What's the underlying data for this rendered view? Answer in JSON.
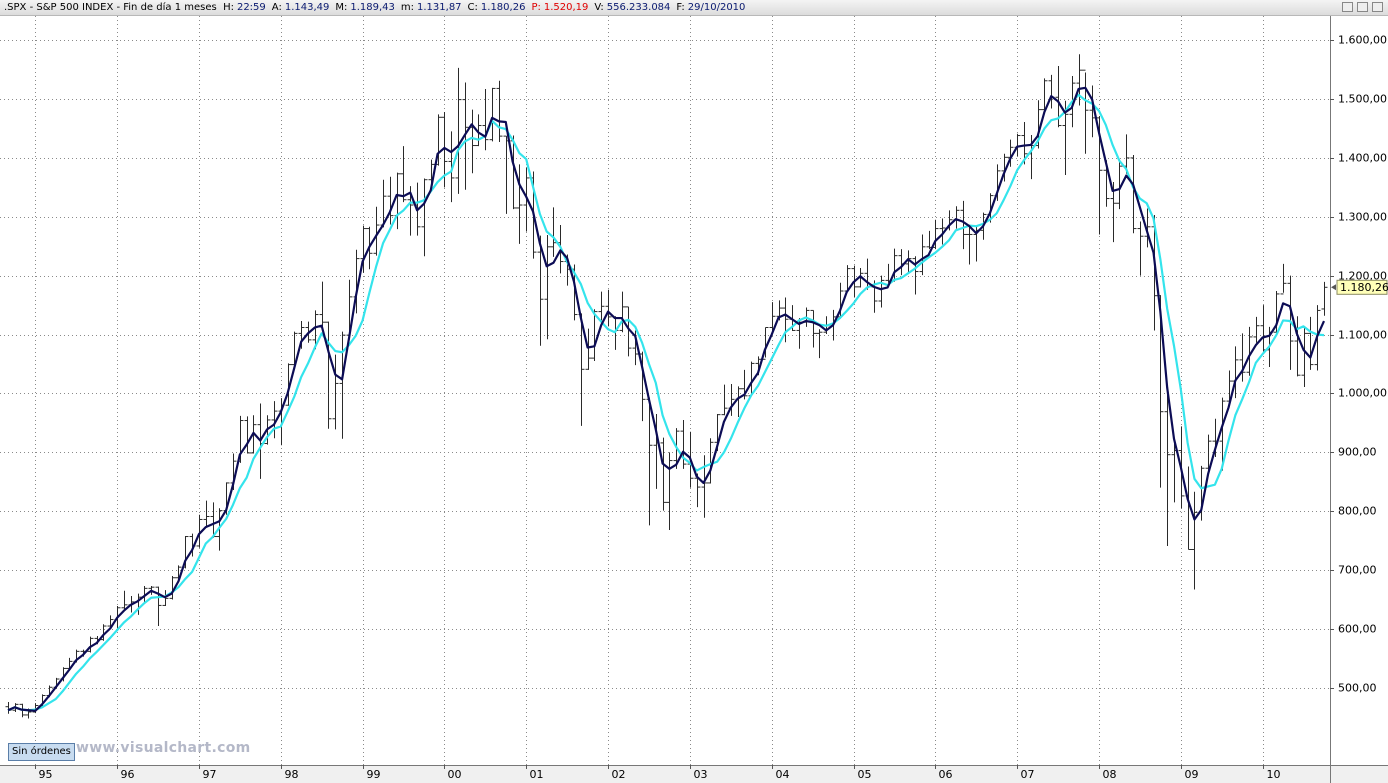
{
  "header": {
    "title": ".SPX - S&P 500 INDEX - Fin de día 1 meses",
    "items": [
      {
        "label": "H:",
        "value": "22:59"
      },
      {
        "label": "A:",
        "value": "1.143,49"
      },
      {
        "label": "M:",
        "value": "1.189,43"
      },
      {
        "label": "m:",
        "value": "1.131,87"
      },
      {
        "label": "C:",
        "value": "1.180,26"
      },
      {
        "label": "P:",
        "value": "1.520,19",
        "color": "#e00000"
      },
      {
        "label": "V:",
        "value": "556.233.084"
      },
      {
        "label": "F:",
        "value": "29/10/2010"
      }
    ]
  },
  "order_button": "Sin órdenes",
  "watermark": "www.visualchart.com",
  "chart_data": {
    "type": "ohlc",
    "color": "#2a2a2a",
    "grid": true,
    "categories": [
      null,
      null,
      null,
      null,
      "95",
      null,
      null,
      null,
      null,
      null,
      null,
      null,
      null,
      null,
      null,
      null,
      "96",
      null,
      null,
      null,
      null,
      null,
      null,
      null,
      null,
      null,
      null,
      null,
      "97",
      null,
      null,
      null,
      null,
      null,
      null,
      null,
      null,
      null,
      null,
      null,
      "98",
      null,
      null,
      null,
      null,
      null,
      null,
      null,
      null,
      null,
      null,
      null,
      "99",
      null,
      null,
      null,
      null,
      null,
      null,
      null,
      null,
      null,
      null,
      null,
      "00",
      null,
      null,
      null,
      null,
      null,
      null,
      null,
      null,
      null,
      null,
      null,
      "01",
      null,
      null,
      null,
      null,
      null,
      null,
      null,
      null,
      null,
      null,
      null,
      "02",
      null,
      null,
      null,
      null,
      null,
      null,
      null,
      null,
      null,
      null,
      null,
      "03",
      null,
      null,
      null,
      null,
      null,
      null,
      null,
      null,
      null,
      null,
      null,
      "04",
      null,
      null,
      null,
      null,
      null,
      null,
      null,
      null,
      null,
      null,
      null,
      "05",
      null,
      null,
      null,
      null,
      null,
      null,
      null,
      null,
      null,
      null,
      null,
      "06",
      null,
      null,
      null,
      null,
      null,
      null,
      null,
      null,
      null,
      null,
      null,
      "07",
      null,
      null,
      null,
      null,
      null,
      null,
      null,
      null,
      null,
      null,
      null,
      "08",
      null,
      null,
      null,
      null,
      null,
      null,
      null,
      null,
      null,
      null,
      null,
      "09",
      null,
      null,
      null,
      null,
      null,
      null,
      null,
      null,
      null,
      null,
      null,
      "10",
      null,
      null,
      null,
      null,
      null,
      null,
      null,
      null,
      null
    ],
    "open": [
      468,
      462,
      472,
      454,
      459,
      470,
      487,
      501,
      515,
      533,
      545,
      562,
      562,
      584,
      582,
      605,
      616,
      636,
      641,
      646,
      654,
      669,
      671,
      640,
      652,
      687,
      705,
      757,
      741,
      786,
      791,
      757,
      801,
      848,
      885,
      954,
      899,
      947,
      915,
      955,
      970,
      980,
      1049,
      1102,
      1112,
      1091,
      1134,
      1121,
      957,
      1017,
      1099,
      1164,
      1229,
      1280,
      1238,
      1286,
      1335,
      1302,
      1373,
      1329,
      1320,
      1283,
      1363,
      1389,
      1469,
      1394,
      1366,
      1499,
      1452,
      1421,
      1455,
      1431,
      1518,
      1437,
      1429,
      1315,
      1320,
      1366,
      1240,
      1160,
      1249,
      1256,
      1224,
      1211,
      1134,
      1041,
      1060,
      1139,
      1148,
      1130,
      1107,
      1147,
      1077,
      1067,
      990,
      912,
      916,
      815,
      886,
      936,
      880,
      856,
      841,
      848,
      917,
      964,
      975,
      990,
      1008,
      996,
      1051,
      1058,
      1112,
      1131,
      1145,
      1126,
      1107,
      1121,
      1141,
      1102,
      1104,
      1115,
      1130,
      1174,
      1212,
      1181,
      1204,
      1181,
      1157,
      1192,
      1191,
      1234,
      1220,
      1229,
      1207,
      1249,
      1248,
      1280,
      1281,
      1295,
      1311,
      1270,
      1270,
      1277,
      1304,
      1336,
      1378,
      1401,
      1418,
      1438,
      1407,
      1421,
      1482,
      1531,
      1503,
      1455,
      1474,
      1527,
      1549,
      1481,
      1468,
      1379,
      1331,
      1323,
      1386,
      1400,
      1280,
      1267,
      1283,
      1166,
      969,
      896,
      903,
      826,
      735,
      798,
      873,
      919,
      919,
      987,
      1021,
      1057,
      1036,
      1096,
      1115,
      1074,
      1104,
      1169,
      1187,
      1089,
      1031,
      1102,
      1049,
      1143.49
    ],
    "high": [
      476,
      474,
      473,
      465,
      474,
      489,
      504,
      517,
      535,
      551,
      565,
      565,
      587,
      588,
      608,
      623,
      639,
      665,
      656,
      660,
      673,
      673,
      672,
      666,
      690,
      708,
      758,
      762,
      794,
      818,
      815,
      805,
      849,
      898,
      962,
      961,
      963,
      983,
      963,
      987,
      992,
      1051,
      1105,
      1123,
      1122,
      1141,
      1190,
      1122,
      1066,
      1105,
      1193,
      1244,
      1285,
      1283,
      1317,
      1363,
      1368,
      1375,
      1420,
      1352,
      1358,
      1365,
      1397,
      1474,
      1478,
      1445,
      1553,
      1528,
      1482,
      1474,
      1517,
      1519,
      1531,
      1437,
      1438,
      1389,
      1384,
      1377,
      1268,
      1269,
      1316,
      1286,
      1236,
      1219,
      1136,
      1110,
      1143,
      1173,
      1176,
      1131,
      1173,
      1147,
      1107,
      1071,
      993,
      965,
      925,
      900,
      941,
      955,
      935,
      864,
      895,
      924,
      965,
      1015,
      1016,
      1012,
      1040,
      1054,
      1063,
      1112,
      1155,
      1158,
      1163,
      1150,
      1128,
      1146,
      1141,
      1109,
      1131,
      1142,
      1188,
      1218,
      1217,
      1213,
      1229,
      1192,
      1200,
      1220,
      1246,
      1245,
      1243,
      1233,
      1270,
      1276,
      1295,
      1297,
      1311,
      1318,
      1327,
      1284,
      1283,
      1307,
      1340,
      1389,
      1407,
      1431,
      1441,
      1461,
      1439,
      1498,
      1535,
      1541,
      1556,
      1497,
      1539,
      1576,
      1545,
      1523,
      1471,
      1396,
      1359,
      1397,
      1440,
      1405,
      1292,
      1314,
      1303,
      1167,
      1008,
      919,
      944,
      876,
      833,
      877,
      930,
      957,
      993,
      1039,
      1080,
      1102,
      1113,
      1130,
      1150,
      1113,
      1174,
      1220,
      1200,
      1131,
      1114,
      1130,
      1150,
      1189.43
    ],
    "low": [
      456,
      459,
      450,
      448,
      457,
      468,
      484,
      499,
      511,
      530,
      543,
      553,
      560,
      574,
      580,
      602,
      597,
      632,
      628,
      624,
      646,
      658,
      605,
      639,
      650,
      684,
      703,
      723,
      738,
      774,
      755,
      733,
      794,
      836,
      882,
      898,
      898,
      855,
      913,
      924,
      912,
      979,
      1046,
      1076,
      1086,
      1075,
      1114,
      940,
      939,
      923,
      1096,
      1136,
      1205,
      1211,
      1234,
      1282,
      1287,
      1279,
      1325,
      1268,
      1268,
      1233,
      1348,
      1387,
      1350,
      1325,
      1339,
      1346,
      1374,
      1420,
      1413,
      1428,
      1427,
      1305,
      1313,
      1254,
      1275,
      1229,
      1081,
      1092,
      1232,
      1204,
      1183,
      1124,
      945,
      1040,
      1055,
      1124,
      1114,
      1074,
      1104,
      1063,
      1048,
      953,
      776,
      838,
      801,
      768,
      872,
      872,
      840,
      807,
      789,
      847,
      902,
      963,
      962,
      960,
      990,
      996,
      1031,
      1061,
      1106,
      1124,
      1087,
      1106,
      1076,
      1113,
      1078,
      1060,
      1101,
      1090,
      1127,
      1172,
      1163,
      1180,
      1176,
      1137,
      1146,
      1188,
      1190,
      1201,
      1205,
      1168,
      1201,
      1245,
      1245,
      1253,
      1277,
      1280,
      1245,
      1219,
      1224,
      1261,
      1290,
      1327,
      1360,
      1385,
      1403,
      1389,
      1364,
      1416,
      1476,
      1484,
      1452,
      1371,
      1452,
      1489,
      1407,
      1435,
      1270,
      1317,
      1257,
      1313,
      1373,
      1272,
      1200,
      1248,
      1107,
      840,
      741,
      815,
      805,
      735,
      667,
      784,
      863,
      892,
      869,
      978,
      992,
      1020,
      1030,
      1086,
      1071,
      1045,
      1101,
      1171,
      1040,
      1029,
      1011,
      1040,
      1039,
      1131.87
    ],
    "close": [
      462,
      472,
      454,
      459,
      470,
      487,
      501,
      515,
      533,
      545,
      562,
      562,
      584,
      582,
      605,
      616,
      636,
      641,
      646,
      654,
      669,
      671,
      640,
      652,
      687,
      705,
      757,
      741,
      786,
      791,
      757,
      801,
      848,
      885,
      954,
      899,
      947,
      915,
      955,
      970,
      980,
      1049,
      1102,
      1112,
      1091,
      1134,
      1121,
      957,
      1017,
      1099,
      1164,
      1229,
      1280,
      1238,
      1286,
      1335,
      1302,
      1373,
      1329,
      1320,
      1283,
      1363,
      1389,
      1469,
      1394,
      1366,
      1499,
      1452,
      1421,
      1455,
      1431,
      1518,
      1437,
      1429,
      1315,
      1320,
      1366,
      1240,
      1160,
      1249,
      1256,
      1224,
      1211,
      1134,
      1041,
      1060,
      1139,
      1148,
      1130,
      1107,
      1147,
      1077,
      1067,
      990,
      912,
      916,
      815,
      886,
      936,
      880,
      856,
      841,
      848,
      917,
      964,
      975,
      990,
      1008,
      996,
      1051,
      1058,
      1112,
      1131,
      1145,
      1126,
      1107,
      1121,
      1141,
      1102,
      1104,
      1115,
      1130,
      1174,
      1212,
      1181,
      1204,
      1181,
      1157,
      1192,
      1191,
      1234,
      1220,
      1229,
      1207,
      1249,
      1248,
      1280,
      1281,
      1295,
      1311,
      1270,
      1270,
      1277,
      1304,
      1336,
      1378,
      1401,
      1418,
      1438,
      1407,
      1421,
      1482,
      1531,
      1503,
      1455,
      1474,
      1527,
      1549,
      1481,
      1468,
      1379,
      1331,
      1323,
      1386,
      1400,
      1280,
      1267,
      1283,
      1166,
      969,
      896,
      903,
      826,
      735,
      798,
      873,
      919,
      919,
      987,
      1021,
      1057,
      1036,
      1096,
      1115,
      1074,
      1104,
      1169,
      1187,
      1089,
      1031,
      1102,
      1049,
      1141,
      1180.26
    ],
    "moving_averages": [
      {
        "color": "#34e4ec",
        "values": [
          462,
          467,
          463,
          462,
          463,
          467,
          474,
          481,
          494,
          509,
          524,
          536,
          550,
          561,
          573,
          585,
          598,
          611,
          621,
          633,
          644,
          653,
          654,
          655,
          662,
          671,
          685,
          697,
          721,
          745,
          756,
          772,
          787,
          811,
          839,
          857,
          889,
          908,
          926,
          940,
          944,
          969,
          995,
          1028,
          1051,
          1078,
          1102,
          1086,
          1072,
          1070,
          1082,
          1098,
          1124,
          1171,
          1216,
          1255,
          1278,
          1302,
          1311,
          1324,
          1324,
          1328,
          1343,
          1359,
          1370,
          1377,
          1413,
          1428,
          1434,
          1431,
          1437,
          1463,
          1452,
          1449,
          1431,
          1408,
          1398,
          1351,
          1305,
          1275,
          1265,
          1249,
          1223,
          1206,
          1186,
          1154,
          1135,
          1122,
          1109,
          1104,
          1122,
          1125,
          1113,
          1086,
          1050,
          1018,
          963,
          931,
          909,
          891,
          882,
          869,
          875,
          880,
          884,
          900,
          923,
          950,
          975,
          997,
          1013,
          1036,
          1059,
          1082,
          1104,
          1113,
          1124,
          1129,
          1124,
          1117,
          1115,
          1119,
          1128,
          1140,
          1153,
          1169,
          1180,
          1185,
          1188,
          1184,
          1193,
          1196,
          1204,
          1212,
          1222,
          1231,
          1239,
          1249,
          1260,
          1277,
          1281,
          1285,
          1284,
          1288,
          1295,
          1306,
          1328,
          1352,
          1379,
          1396,
          1411,
          1428,
          1450,
          1464,
          1467,
          1478,
          1495,
          1507,
          1498,
          1492,
          1480,
          1456,
          1422,
          1395,
          1381,
          1350,
          1331,
          1323,
          1297,
          1228,
          1144,
          1081,
          1007,
          916,
          855,
          839,
          842,
          845,
          872,
          920,
          963,
          990,
          1019,
          1052,
          1067,
          1080,
          1099,
          1124,
          1123,
          1109,
          1114,
          1105,
          1100,
          1099
        ]
      },
      {
        "color": "#0c0c55",
        "values": [
          462,
          467,
          463,
          462,
          461,
          472,
          486,
          501,
          516,
          531,
          547,
          556,
          569,
          576,
          590,
          601,
          619,
          631,
          641,
          647,
          656,
          665,
          660,
          654,
          660,
          681,
          716,
          734,
          761,
          773,
          778,
          783,
          802,
          845,
          896,
          913,
          933,
          920,
          939,
          947,
          968,
          1000,
          1044,
          1088,
          1102,
          1112,
          1115,
          1071,
          1032,
          1024,
          1093,
          1164,
          1224,
          1249,
          1268,
          1286,
          1308,
          1337,
          1335,
          1341,
          1311,
          1322,
          1345,
          1407,
          1417,
          1410,
          1420,
          1439,
          1457,
          1443,
          1436,
          1468,
          1462,
          1461,
          1394,
          1355,
          1334,
          1309,
          1255,
          1216,
          1222,
          1243,
          1230,
          1190,
          1129,
          1078,
          1080,
          1116,
          1139,
          1128,
          1128,
          1110,
          1097,
          1045,
          990,
          939,
          881,
          872,
          879,
          901,
          891,
          859,
          848,
          869,
          910,
          952,
          976,
          991,
          998,
          1018,
          1035,
          1074,
          1100,
          1129,
          1134,
          1126,
          1118,
          1123,
          1121,
          1116,
          1107,
          1116,
          1140,
          1172,
          1189,
          1199,
          1189,
          1181,
          1177,
          1180,
          1206,
          1215,
          1228,
          1219,
          1228,
          1235,
          1259,
          1270,
          1285,
          1296,
          1292,
          1284,
          1272,
          1284,
          1306,
          1339,
          1372,
          1399,
          1419,
          1421,
          1422,
          1437,
          1478,
          1505,
          1496,
          1477,
          1485,
          1517,
          1519,
          1499,
          1443,
          1393,
          1344,
          1347,
          1370,
          1355,
          1316,
          1277,
          1239,
          1139,
          1010,
          923,
          875,
          821,
          786,
          802,
          863,
          904,
          942,
          976,
          1022,
          1038,
          1063,
          1082,
          1095,
          1098,
          1116,
          1153,
          1148,
          1102,
          1074,
          1061,
          1097,
          1123
        ]
      }
    ],
    "ylim": [
      369,
      1641
    ],
    "yticks": [
      {
        "value": 500,
        "label": "500,00"
      },
      {
        "value": 600,
        "label": "600,00"
      },
      {
        "value": 700,
        "label": "700,00"
      },
      {
        "value": 800,
        "label": "800,00"
      },
      {
        "value": 900,
        "label": "900,00"
      },
      {
        "value": 1000,
        "label": "1.000,00"
      },
      {
        "value": 1100,
        "label": "1.100,00"
      },
      {
        "value": 1200,
        "label": "1.200,00"
      },
      {
        "value": 1300,
        "label": "1.300,00"
      },
      {
        "value": 1400,
        "label": "1.400,00"
      },
      {
        "value": 1500,
        "label": "1.500,00"
      },
      {
        "value": 1600,
        "label": "1.600,00"
      }
    ],
    "price_marker": {
      "value": 1180.26,
      "label": "1.180,26"
    }
  }
}
